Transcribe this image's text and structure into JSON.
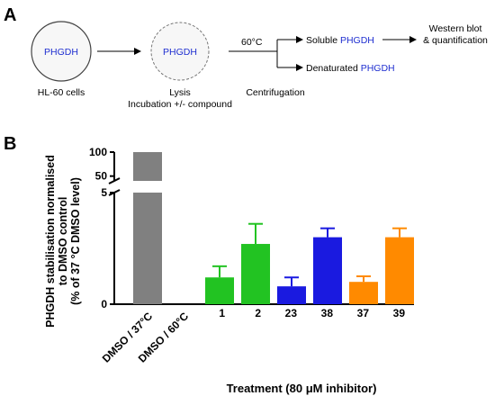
{
  "panel_a": {
    "label": "A",
    "cell1_text": "PHGDH",
    "cell1_caption": "HL-60 cells",
    "cell2_text": "PHGDH",
    "cell2_caption_line1": "Lysis",
    "cell2_caption_line2": "Incubation +/- compound",
    "temperature": "60°C",
    "centrifugation": "Centrifugation",
    "soluble_prefix": "Soluble ",
    "soluble_protein": "PHGDH",
    "denatured_prefix": "Denaturated ",
    "denatured_protein": "PHGDH",
    "readout_line1": "Western blot",
    "readout_line2": "& quantification",
    "colors": {
      "protein_text": "#1f2fd0",
      "cell_fill": "#f7f7f7"
    }
  },
  "panel_b": {
    "label": "B",
    "chart_data": {
      "type": "bar",
      "ylabel_lines": [
        "PHGDH stabilisation normalised",
        "to DMSO control",
        "(% of 37 °C DMSO level)"
      ],
      "xlabel": "Treatment (80 μM inhibitor)",
      "categories": [
        "DMSO / 37°C",
        "DMSO / 60°C",
        "1",
        "2",
        "23",
        "38",
        "37",
        "39"
      ],
      "values": [
        100,
        0,
        1.2,
        2.7,
        0.8,
        3.0,
        1.0,
        3.0
      ],
      "errors": [
        0,
        0,
        0.5,
        0.9,
        0.4,
        0.4,
        0.25,
        0.4
      ],
      "colors": [
        "#808080",
        "#808080",
        "#22c322",
        "#22c322",
        "#1a1ae0",
        "#1a1ae0",
        "#ff8a00",
        "#ff8a00"
      ],
      "y_lower_ticks": [
        "0",
        "5"
      ],
      "y_upper_ticks": [
        "50",
        "100"
      ],
      "y_lower_range": [
        0,
        5
      ],
      "y_upper_range": [
        40,
        100
      ],
      "axis_break": true,
      "grid": false
    }
  }
}
